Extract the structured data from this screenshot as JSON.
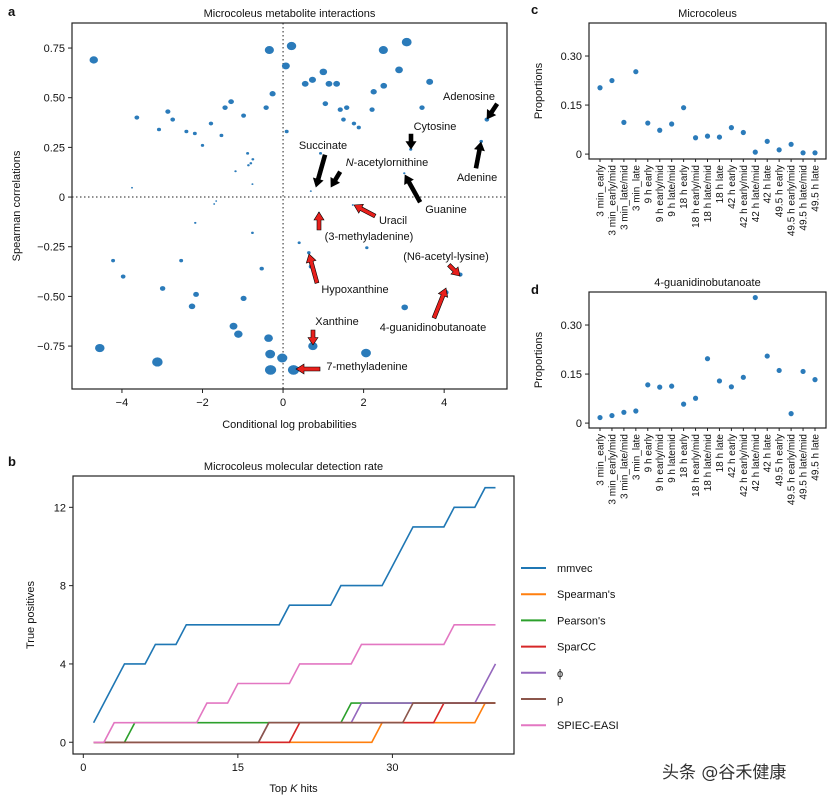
{
  "panel_labels": {
    "a": "a",
    "b": "b",
    "c": "c",
    "d": "d"
  },
  "watermark": "头条 @谷禾健康",
  "chart_data": [
    {
      "panel": "a",
      "type": "scatter",
      "title": "Microcoleus metabolite interactions",
      "xlabel": "Conditional log probabilities",
      "ylabel": "Spearman correlations",
      "xlim": [
        -5.24,
        5.56
      ],
      "ylim": [
        -0.966,
        0.876
      ],
      "xticks": [
        {
          "v": -4,
          "label": "−4"
        },
        {
          "v": -2,
          "label": "−2"
        },
        {
          "v": 0,
          "label": "0"
        },
        {
          "v": 2,
          "label": "2"
        },
        {
          "v": 4,
          "label": "4"
        }
      ],
      "yticks": [
        {
          "v": 0.75,
          "label": "0.75"
        },
        {
          "v": 0.5,
          "label": "0.50"
        },
        {
          "v": 0.25,
          "label": "0.25"
        },
        {
          "v": 0,
          "label": "0"
        },
        {
          "v": -0.25,
          "label": "−0.25"
        },
        {
          "v": -0.5,
          "label": "−0.50"
        },
        {
          "v": -0.75,
          "label": "−0.75"
        }
      ],
      "reference_lines": {
        "x": 0,
        "y": 0,
        "style": "dotted"
      },
      "marker_color": "#2b7bba",
      "points": [
        [
          -4.7,
          0.69
        ],
        [
          -0.34,
          0.74
        ],
        [
          0.21,
          0.76
        ],
        [
          3.07,
          0.78
        ],
        [
          2.49,
          0.74
        ],
        [
          0.07,
          0.66
        ],
        [
          1.0,
          0.63
        ],
        [
          2.88,
          0.64
        ],
        [
          0.55,
          0.57
        ],
        [
          0.73,
          0.59
        ],
        [
          1.14,
          0.57
        ],
        [
          1.33,
          0.57
        ],
        [
          3.64,
          0.58
        ],
        [
          2.25,
          0.53
        ],
        [
          2.5,
          0.56
        ],
        [
          -0.26,
          0.52
        ],
        [
          1.05,
          0.47
        ],
        [
          1.42,
          0.44
        ],
        [
          1.58,
          0.45
        ],
        [
          2.21,
          0.44
        ],
        [
          3.45,
          0.45
        ],
        [
          1.5,
          0.39
        ],
        [
          1.76,
          0.37
        ],
        [
          1.88,
          0.35
        ],
        [
          -0.42,
          0.45
        ],
        [
          -0.98,
          0.41
        ],
        [
          -1.29,
          0.48
        ],
        [
          -1.44,
          0.45
        ],
        [
          -1.79,
          0.37
        ],
        [
          -1.53,
          0.31
        ],
        [
          -2.19,
          0.32
        ],
        [
          -2.4,
          0.33
        ],
        [
          -2.0,
          0.26
        ],
        [
          -3.08,
          0.34
        ],
        [
          -2.86,
          0.43
        ],
        [
          -2.74,
          0.39
        ],
        [
          -3.63,
          0.4
        ],
        [
          0.09,
          0.33
        ],
        [
          -0.88,
          0.22
        ],
        [
          -0.75,
          0.19
        ],
        [
          -0.86,
          0.16
        ],
        [
          -0.8,
          0.17
        ],
        [
          -1.18,
          0.13
        ],
        [
          -0.76,
          0.065
        ],
        [
          -3.75,
          0.047
        ],
        [
          0.93,
          0.22
        ],
        [
          0.69,
          0.03
        ],
        [
          3.01,
          0.12
        ],
        [
          3.17,
          0.24
        ],
        [
          4.92,
          0.28
        ],
        [
          5.06,
          0.39
        ],
        [
          -1.66,
          -0.02
        ],
        [
          -1.71,
          -0.035
        ],
        [
          -2.18,
          -0.13
        ],
        [
          -0.76,
          -0.18
        ],
        [
          0.89,
          -0.08
        ],
        [
          1.73,
          -0.04
        ],
        [
          0.4,
          -0.23
        ],
        [
          2.08,
          -0.255
        ],
        [
          0.64,
          -0.28
        ],
        [
          0.69,
          -0.35
        ],
        [
          4.4,
          -0.39
        ],
        [
          4.04,
          -0.48
        ],
        [
          3.02,
          -0.555
        ],
        [
          -4.22,
          -0.32
        ],
        [
          -3.97,
          -0.4
        ],
        [
          -2.53,
          -0.32
        ],
        [
          -0.53,
          -0.36
        ],
        [
          -2.99,
          -0.46
        ],
        [
          -2.16,
          -0.49
        ],
        [
          -2.26,
          -0.55
        ],
        [
          -0.98,
          -0.51
        ],
        [
          -1.23,
          -0.65
        ],
        [
          -1.11,
          -0.69
        ],
        [
          -0.36,
          -0.71
        ],
        [
          0.74,
          -0.75
        ],
        [
          -4.55,
          -0.76
        ],
        [
          -3.12,
          -0.83
        ],
        [
          -0.32,
          -0.79
        ],
        [
          -0.02,
          -0.81
        ],
        [
          -0.31,
          -0.87
        ],
        [
          0.26,
          -0.87
        ],
        [
          2.06,
          -0.785
        ]
      ],
      "annotations": [
        {
          "text": "Adenosine",
          "arrow_color": "#000000"
        },
        {
          "text": "Cytosine",
          "arrow_color": "#000000"
        },
        {
          "text": "Succinate",
          "arrow_color": "#000000"
        },
        {
          "text_italic": "N",
          "text": "-acetylornithine",
          "arrow_color": "#000000"
        },
        {
          "text": "Adenine",
          "arrow_color": "#000000"
        },
        {
          "text": "Guanine",
          "arrow_color": "#000000"
        },
        {
          "text": "Uracil",
          "arrow_color": "#e8201c"
        },
        {
          "text": "(3-methyladenine)",
          "arrow_color": "#e8201c"
        },
        {
          "text": "(N6-acetyl-lysine)",
          "arrow_color": "#e8201c"
        },
        {
          "text": "Hypoxanthine",
          "arrow_color": "#e8201c"
        },
        {
          "text": "4-guanidinobutanoate",
          "arrow_color": "#e8201c"
        },
        {
          "text": "Xanthine",
          "arrow_color": "#e8201c"
        },
        {
          "text": "7-methyladenine",
          "arrow_color": "#e8201c"
        }
      ]
    },
    {
      "panel": "b",
      "type": "line",
      "title": "Microcoleus molecular detection rate",
      "xlabel_parts": [
        "Top ",
        "K",
        " hits"
      ],
      "ylabel": "True positives",
      "xlim": [
        -1,
        41.8
      ],
      "ylim": [
        -0.6,
        13.6
      ],
      "xticks": [
        {
          "v": 0,
          "label": "0"
        },
        {
          "v": 15,
          "label": "15"
        },
        {
          "v": 30,
          "label": "30"
        }
      ],
      "yticks": [
        {
          "v": 0,
          "label": "0"
        },
        {
          "v": 4,
          "label": "4"
        },
        {
          "v": 8,
          "label": "8"
        },
        {
          "v": 12,
          "label": "12"
        }
      ],
      "legend_position": "right",
      "x": [
        1,
        2,
        3,
        4,
        5,
        6,
        7,
        8,
        9,
        10,
        11,
        12,
        13,
        14,
        15,
        16,
        17,
        18,
        19,
        20,
        21,
        22,
        23,
        24,
        25,
        26,
        27,
        28,
        29,
        30,
        31,
        32,
        33,
        34,
        35,
        36,
        37,
        38,
        39,
        40
      ],
      "series": [
        {
          "name": "mmvec",
          "color": "#1f77b4",
          "values": [
            1,
            2,
            3,
            4,
            4,
            4,
            5,
            5,
            5,
            6,
            6,
            6,
            6,
            6,
            6,
            6,
            6,
            6,
            6,
            7,
            7,
            7,
            7,
            7,
            8,
            8,
            8,
            8,
            8,
            9,
            10,
            11,
            11,
            11,
            11,
            12,
            12,
            12,
            13,
            13
          ]
        },
        {
          "name": "Spearman's",
          "color": "#ff7f0e",
          "values": [
            0,
            0,
            0,
            0,
            0,
            0,
            0,
            0,
            0,
            0,
            0,
            0,
            0,
            0,
            0,
            0,
            0,
            0,
            0,
            0,
            0,
            0,
            0,
            0,
            0,
            0,
            0,
            0,
            1,
            1,
            1,
            1,
            1,
            1,
            1,
            1,
            1,
            1,
            2,
            2
          ]
        },
        {
          "name": "Pearson's",
          "color": "#2ca02c",
          "values": [
            0,
            0,
            0,
            0,
            1,
            1,
            1,
            1,
            1,
            1,
            1,
            1,
            1,
            1,
            1,
            1,
            1,
            1,
            1,
            1,
            1,
            1,
            1,
            1,
            1,
            2,
            2,
            2,
            2,
            2,
            2,
            2,
            2,
            2,
            2,
            2,
            2,
            2,
            2,
            2
          ]
        },
        {
          "name": "SparCC",
          "color": "#d62728",
          "values": [
            0,
            0,
            0,
            0,
            0,
            0,
            0,
            0,
            0,
            0,
            0,
            0,
            0,
            0,
            0,
            0,
            0,
            0,
            0,
            0,
            1,
            1,
            1,
            1,
            1,
            1,
            1,
            1,
            1,
            1,
            1,
            1,
            1,
            1,
            2,
            2,
            2,
            2,
            2,
            2
          ]
        },
        {
          "name": "ϕ",
          "color": "#9467bd",
          "values": [
            0,
            0,
            0,
            0,
            0,
            0,
            0,
            0,
            0,
            0,
            0,
            0,
            0,
            0,
            0,
            0,
            0,
            1,
            1,
            1,
            1,
            1,
            1,
            1,
            1,
            1,
            2,
            2,
            2,
            2,
            2,
            2,
            2,
            2,
            2,
            2,
            2,
            2,
            3,
            4
          ]
        },
        {
          "name": "ρ",
          "color": "#8c564b",
          "values": [
            0,
            0,
            0,
            0,
            0,
            0,
            0,
            0,
            0,
            0,
            0,
            0,
            0,
            0,
            0,
            0,
            0,
            1,
            1,
            1,
            1,
            1,
            1,
            1,
            1,
            1,
            1,
            1,
            1,
            1,
            1,
            2,
            2,
            2,
            2,
            2,
            2,
            2,
            2,
            2
          ]
        },
        {
          "name": "SPIEC-EASI",
          "color": "#e377c2",
          "values": [
            0,
            0,
            1,
            1,
            1,
            1,
            1,
            1,
            1,
            1,
            1,
            2,
            2,
            2,
            3,
            3,
            3,
            3,
            3,
            3,
            4,
            4,
            4,
            4,
            4,
            4,
            5,
            5,
            5,
            5,
            5,
            5,
            5,
            5,
            5,
            6,
            6,
            6,
            6,
            6
          ]
        }
      ]
    },
    {
      "panel": "c",
      "type": "scatter",
      "title": "Microcoleus",
      "ylabel": "Proportions",
      "ylim": [
        -0.015,
        0.401
      ],
      "yticks": [
        {
          "v": 0,
          "label": "0"
        },
        {
          "v": 0.15,
          "label": "0.15"
        },
        {
          "v": 0.3,
          "label": "0.30"
        }
      ],
      "marker_color": "#2b7bba",
      "categories": [
        "3 min_early",
        "3 min_early/mid",
        "3 min_late/mid",
        "3 min_late",
        "9 h early",
        "9 h early/mid",
        "9 h late/mid",
        "18 h early",
        "18 h early/mid",
        "18 h late/mid",
        "18 h late",
        "42 h early",
        "42 h early/mid",
        "42 h late/mid",
        "42 h late",
        "49.5 h early",
        "49.5 h early/mid",
        "49.5 h late/mid",
        "49.5 h late"
      ],
      "values": [
        0.203,
        0.225,
        0.097,
        0.252,
        0.095,
        0.073,
        0.092,
        0.142,
        0.05,
        0.055,
        0.052,
        0.081,
        0.066,
        0.006,
        0.039,
        0.013,
        0.03,
        0.004,
        0.004
      ]
    },
    {
      "panel": "d",
      "type": "scatter",
      "title": "4-guanidinobutanoate",
      "ylabel": "Proportions",
      "ylim": [
        -0.015,
        0.401
      ],
      "yticks": [
        {
          "v": 0,
          "label": "0"
        },
        {
          "v": 0.15,
          "label": "0.15"
        },
        {
          "v": 0.3,
          "label": "0.30"
        }
      ],
      "marker_color": "#2b7bba",
      "categories": [
        "3 min_early",
        "3 min_early/mid",
        "3 min_late/mid",
        "3 min_late",
        "9 h early",
        "9 h early/mid",
        "9 h latemid",
        "18 h early",
        "18 h early/mid",
        "18 h late/mid",
        "18 h late",
        "42 h early",
        "42 h early/mid",
        "42 h late/mid",
        "42 h late",
        "49.5 h early",
        "49.5 h early/mid",
        "49.5 h late/mid",
        "49.5 h late"
      ],
      "values": [
        0.017,
        0.023,
        0.033,
        0.037,
        0.117,
        0.11,
        0.113,
        0.058,
        0.076,
        0.197,
        0.129,
        0.111,
        0.14,
        0.384,
        0.205,
        0.161,
        0.029,
        0.158,
        0.133
      ]
    }
  ]
}
